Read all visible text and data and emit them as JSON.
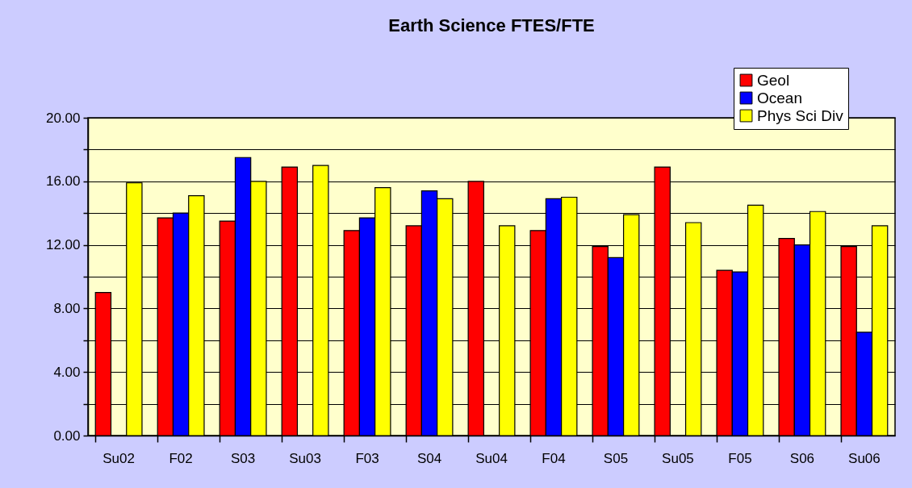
{
  "chart_data": {
    "type": "bar",
    "title": "Earth Science FTES/FTE",
    "categories": [
      "Su02",
      "F02",
      "S03",
      "Su03",
      "F03",
      "S04",
      "Su04",
      "F04",
      "S05",
      "Su05",
      "F05",
      "S06",
      "Su06"
    ],
    "series": [
      {
        "name": "Geol",
        "color": "#ff0000",
        "values": [
          9.0,
          13.7,
          13.5,
          16.9,
          12.9,
          13.2,
          16.0,
          12.9,
          11.9,
          16.9,
          10.4,
          12.4,
          11.9
        ]
      },
      {
        "name": "Ocean",
        "color": "#0000ff",
        "values": [
          null,
          14.0,
          17.5,
          null,
          13.7,
          15.4,
          null,
          14.9,
          11.2,
          null,
          10.3,
          12.0,
          6.5
        ]
      },
      {
        "name": "Phys Sci Div",
        "color": "#ffff00",
        "values": [
          15.9,
          15.1,
          16.0,
          17.0,
          15.6,
          14.9,
          13.2,
          15.0,
          13.9,
          13.4,
          14.5,
          14.1,
          13.2
        ]
      }
    ],
    "ylim": [
      0,
      20
    ],
    "yticks": [
      {
        "value": 0,
        "label": "0.00"
      },
      {
        "value": 2,
        "label": null
      },
      {
        "value": 4,
        "label": "4.00"
      },
      {
        "value": 6,
        "label": null
      },
      {
        "value": 8,
        "label": "8.00"
      },
      {
        "value": 10,
        "label": null
      },
      {
        "value": 12,
        "label": "12.00"
      },
      {
        "value": 14,
        "label": null
      },
      {
        "value": 16,
        "label": "16.00"
      },
      {
        "value": 18,
        "label": null
      },
      {
        "value": 20,
        "label": "20.00"
      }
    ],
    "grid": "y",
    "legend": "top right"
  }
}
